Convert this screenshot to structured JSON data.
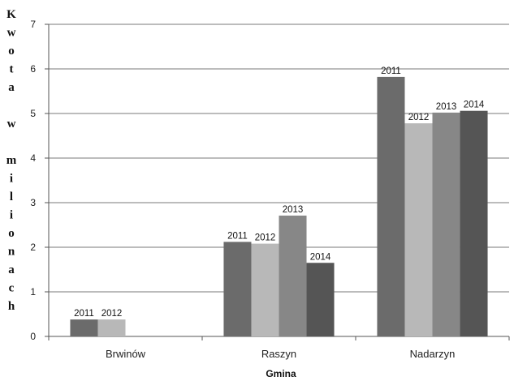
{
  "chart_data": {
    "type": "bar",
    "title": "",
    "xlabel": "Gmina",
    "ylabel": "Kwota w milionach",
    "ylim": [
      0,
      7
    ],
    "yticks": [
      0,
      1,
      2,
      3,
      4,
      5,
      6,
      7
    ],
    "grid": true,
    "legend": "none",
    "categories": [
      "Brwinów",
      "Raszyn",
      "Nadarzyn"
    ],
    "series": [
      {
        "name": "2011",
        "color": "#6b6b6b",
        "values": [
          0.38,
          2.12,
          5.82
        ]
      },
      {
        "name": "2012",
        "color": "#b8b8b8",
        "values": [
          0.38,
          2.08,
          4.78
        ]
      },
      {
        "name": "2013",
        "color": "#878787",
        "values": [
          null,
          2.71,
          5.02
        ]
      },
      {
        "name": "2014",
        "color": "#555555",
        "values": [
          null,
          1.65,
          5.06
        ]
      }
    ]
  }
}
